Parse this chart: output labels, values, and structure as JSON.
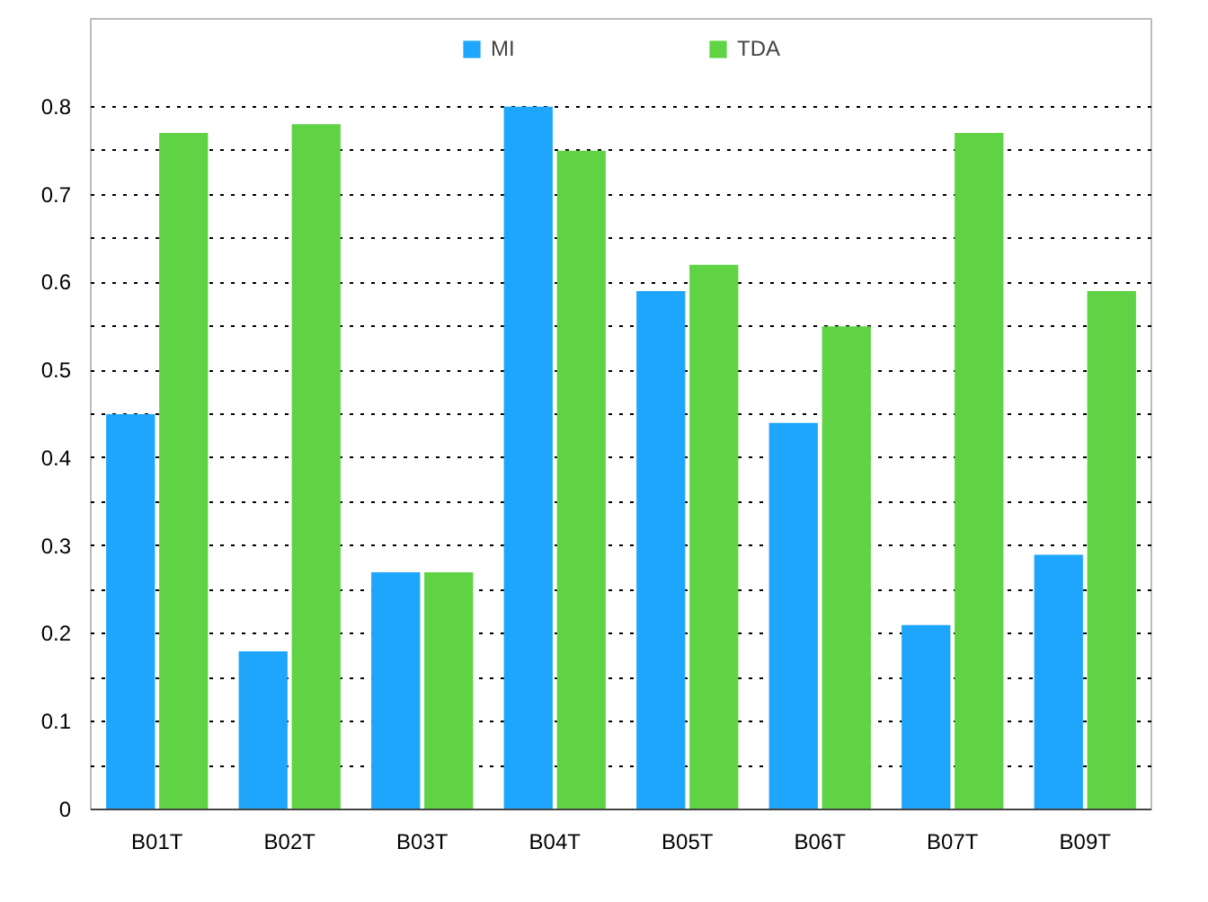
{
  "chart_data": {
    "type": "bar",
    "categories": [
      "B01T",
      "B02T",
      "B03T",
      "B04T",
      "B05T",
      "B06T",
      "B07T",
      "B09T"
    ],
    "series": [
      {
        "name": "MI",
        "color": "#1ea5fc",
        "values": [
          0.45,
          0.18,
          0.27,
          0.8,
          0.59,
          0.44,
          0.21,
          0.29
        ]
      },
      {
        "name": "TDA",
        "color": "#5fd344",
        "values": [
          0.77,
          0.78,
          0.27,
          0.75,
          0.62,
          0.55,
          0.77,
          0.59
        ]
      }
    ],
    "ylim": [
      0,
      0.9
    ],
    "yticks": [
      0,
      {
        "value": 0.05,
        "label": null
      },
      0.1,
      {
        "value": 0.15,
        "label": null
      },
      0.2,
      {
        "value": 0.25,
        "label": null
      },
      0.3,
      {
        "value": 0.35,
        "label": null
      },
      0.4,
      {
        "value": 0.45,
        "label": null
      },
      0.5,
      {
        "value": 0.55,
        "label": null
      },
      0.6,
      {
        "value": 0.65,
        "label": null
      },
      0.7,
      {
        "value": 0.75,
        "label": null
      },
      0.8
    ],
    "grid": "y",
    "legend": "top"
  }
}
